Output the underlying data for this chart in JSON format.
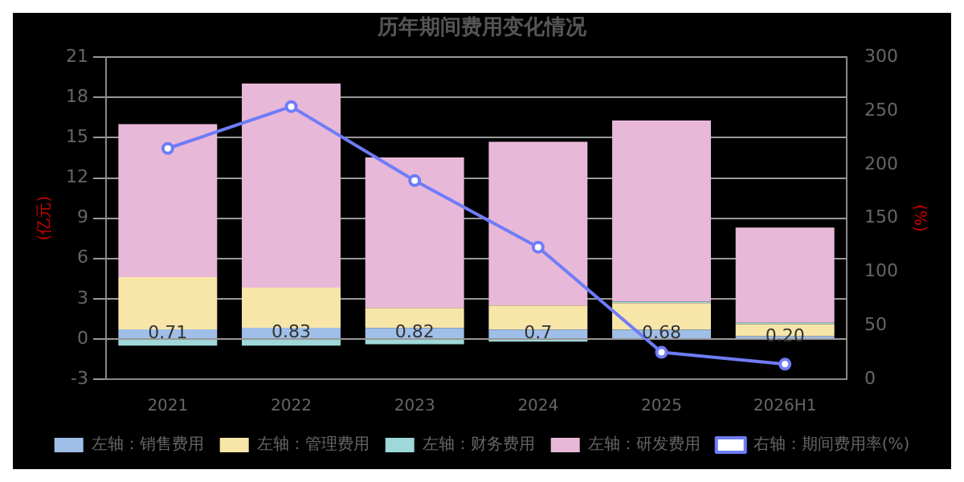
{
  "chart_data": {
    "type": "bar",
    "title": "历年期间费用变化情况",
    "ylabel": "(亿元)",
    "y2label": "(%)",
    "stacked": true,
    "categories": [
      "2021",
      "2022",
      "2023",
      "2024",
      "2025",
      "2026H1"
    ],
    "series": [
      {
        "name": "左轴：销售费用",
        "color": "#9fbfe8",
        "values": [
          0.71,
          0.83,
          0.82,
          0.7,
          0.68,
          0.2
        ],
        "value_labels": [
          "0.71",
          "0.83",
          "0.82",
          "0.7",
          "0.68",
          "0.20"
        ]
      },
      {
        "name": "左轴：管理费用",
        "color": "#f8e6a8",
        "values": [
          3.9,
          3.0,
          1.5,
          1.8,
          2.0,
          0.9
        ]
      },
      {
        "name": "左轴：财务费用",
        "color": "#9ed8d8",
        "values": [
          -0.5,
          -0.5,
          -0.4,
          -0.2,
          0.1,
          0.1
        ]
      },
      {
        "name": "左轴：研发费用",
        "color": "#e8b8d8",
        "values": [
          11.4,
          15.2,
          11.2,
          12.2,
          13.5,
          7.1
        ]
      },
      {
        "name": "右轴：期间费用率(%)",
        "type": "line",
        "axis": "y2",
        "color": "#6f7cf8",
        "marker": "circle",
        "values": [
          215,
          254,
          185,
          123,
          25,
          14
        ]
      }
    ],
    "ylim": [
      -3,
      21
    ],
    "yticks": [
      -3,
      0,
      3,
      6,
      9,
      12,
      15,
      18,
      21
    ],
    "y2lim": [
      0,
      300
    ],
    "y2ticks": [
      0,
      50,
      100,
      150,
      200,
      250,
      300
    ],
    "grid": "y",
    "legend": "bottom"
  }
}
